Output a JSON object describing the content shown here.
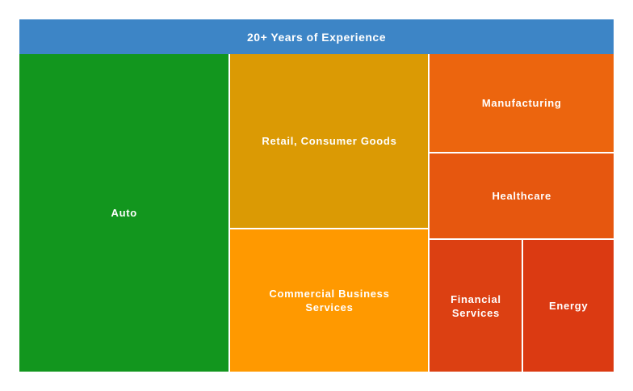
{
  "chart_data": {
    "type": "treemap",
    "title": "20+ Years of Experience",
    "header_color": "#3d85c6",
    "items": [
      {
        "label": "Auto",
        "value": 27.0,
        "color": "#12961e"
      },
      {
        "label": "Retail, Consumer Goods",
        "value": 14.0,
        "color": "#db9a04"
      },
      {
        "label": "Commercial Business\nServices",
        "value": 11.5,
        "color": "#ff9900"
      },
      {
        "label": "Manufacturing",
        "value": 7.4,
        "color": "#ec650e"
      },
      {
        "label": "Healthcare",
        "value": 6.4,
        "color": "#e6570f"
      },
      {
        "label": "Financial\nServices",
        "value": 5.0,
        "color": "#dc4012"
      },
      {
        "label": "Energy",
        "value": 4.9,
        "color": "#db3a12"
      }
    ]
  }
}
